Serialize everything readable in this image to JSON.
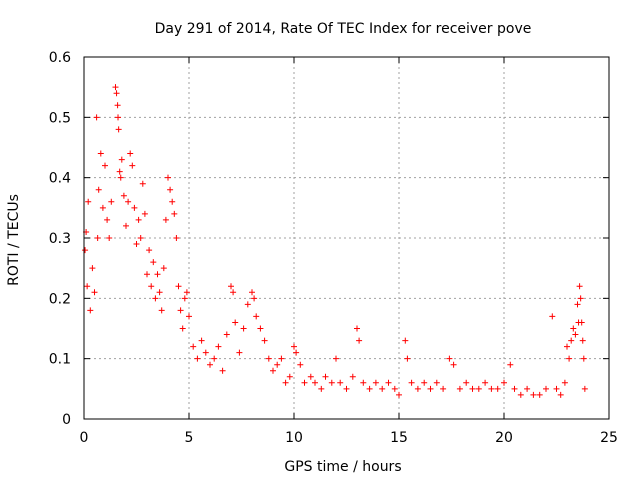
{
  "chart_data": {
    "type": "scatter",
    "title": "Day 291 of 2014, Rate Of TEC Index for receiver pove",
    "xlabel": "GPS time / hours",
    "ylabel": "ROTI / TECUs",
    "xlim": [
      0,
      25
    ],
    "ylim": [
      0,
      0.6
    ],
    "xticks": [
      0,
      5,
      10,
      15,
      20,
      25
    ],
    "xtick_labels": [
      "0",
      "5",
      "10",
      "15",
      "20",
      "25"
    ],
    "yticks": [
      0,
      0.1,
      0.2,
      0.3,
      0.4,
      0.5,
      0.6
    ],
    "ytick_labels": [
      "0",
      "0.1",
      "0.2",
      "0.3",
      "0.4",
      "0.5",
      "0.6"
    ],
    "grid": true,
    "marker": "+",
    "color": "#ff0000",
    "grid_color": "#a0a0a0",
    "series": [
      {
        "name": "ROTI",
        "points": [
          [
            0.05,
            0.28
          ],
          [
            0.1,
            0.31
          ],
          [
            0.15,
            0.22
          ],
          [
            0.2,
            0.36
          ],
          [
            0.3,
            0.18
          ],
          [
            0.4,
            0.25
          ],
          [
            0.5,
            0.21
          ],
          [
            0.6,
            0.5
          ],
          [
            0.65,
            0.3
          ],
          [
            0.7,
            0.38
          ],
          [
            0.8,
            0.44
          ],
          [
            0.9,
            0.35
          ],
          [
            1.0,
            0.42
          ],
          [
            1.1,
            0.33
          ],
          [
            1.2,
            0.3
          ],
          [
            1.3,
            0.36
          ],
          [
            1.5,
            0.55
          ],
          [
            1.55,
            0.54
          ],
          [
            1.6,
            0.52
          ],
          [
            1.62,
            0.5
          ],
          [
            1.65,
            0.48
          ],
          [
            1.7,
            0.41
          ],
          [
            1.75,
            0.4
          ],
          [
            1.8,
            0.43
          ],
          [
            1.9,
            0.37
          ],
          [
            2.0,
            0.32
          ],
          [
            2.1,
            0.36
          ],
          [
            2.2,
            0.44
          ],
          [
            2.3,
            0.42
          ],
          [
            2.4,
            0.35
          ],
          [
            2.5,
            0.29
          ],
          [
            2.6,
            0.33
          ],
          [
            2.7,
            0.3
          ],
          [
            2.8,
            0.39
          ],
          [
            2.9,
            0.34
          ],
          [
            3.0,
            0.24
          ],
          [
            3.1,
            0.28
          ],
          [
            3.2,
            0.22
          ],
          [
            3.3,
            0.26
          ],
          [
            3.4,
            0.2
          ],
          [
            3.5,
            0.24
          ],
          [
            3.6,
            0.21
          ],
          [
            3.7,
            0.18
          ],
          [
            3.8,
            0.25
          ],
          [
            3.9,
            0.33
          ],
          [
            4.0,
            0.4
          ],
          [
            4.1,
            0.38
          ],
          [
            4.2,
            0.36
          ],
          [
            4.3,
            0.34
          ],
          [
            4.4,
            0.3
          ],
          [
            4.5,
            0.22
          ],
          [
            4.6,
            0.18
          ],
          [
            4.7,
            0.15
          ],
          [
            4.8,
            0.2
          ],
          [
            4.9,
            0.21
          ],
          [
            5.0,
            0.17
          ],
          [
            5.2,
            0.12
          ],
          [
            5.4,
            0.1
          ],
          [
            5.6,
            0.13
          ],
          [
            5.8,
            0.11
          ],
          [
            6.0,
            0.09
          ],
          [
            6.2,
            0.1
          ],
          [
            6.4,
            0.12
          ],
          [
            6.6,
            0.08
          ],
          [
            6.8,
            0.14
          ],
          [
            7.0,
            0.22
          ],
          [
            7.1,
            0.21
          ],
          [
            7.2,
            0.16
          ],
          [
            7.4,
            0.11
          ],
          [
            7.6,
            0.15
          ],
          [
            7.8,
            0.19
          ],
          [
            8.0,
            0.21
          ],
          [
            8.1,
            0.2
          ],
          [
            8.2,
            0.17
          ],
          [
            8.4,
            0.15
          ],
          [
            8.6,
            0.13
          ],
          [
            8.8,
            0.1
          ],
          [
            9.0,
            0.08
          ],
          [
            9.2,
            0.09
          ],
          [
            9.4,
            0.1
          ],
          [
            9.6,
            0.06
          ],
          [
            9.8,
            0.07
          ],
          [
            10.0,
            0.12
          ],
          [
            10.1,
            0.11
          ],
          [
            10.3,
            0.09
          ],
          [
            10.5,
            0.06
          ],
          [
            10.8,
            0.07
          ],
          [
            11.0,
            0.06
          ],
          [
            11.3,
            0.05
          ],
          [
            11.5,
            0.07
          ],
          [
            11.8,
            0.06
          ],
          [
            12.0,
            0.1
          ],
          [
            12.2,
            0.06
          ],
          [
            12.5,
            0.05
          ],
          [
            12.8,
            0.07
          ],
          [
            13.0,
            0.15
          ],
          [
            13.1,
            0.13
          ],
          [
            13.3,
            0.06
          ],
          [
            13.6,
            0.05
          ],
          [
            13.9,
            0.06
          ],
          [
            14.2,
            0.05
          ],
          [
            14.5,
            0.06
          ],
          [
            14.8,
            0.05
          ],
          [
            15.0,
            0.04
          ],
          [
            15.3,
            0.13
          ],
          [
            15.4,
            0.1
          ],
          [
            15.6,
            0.06
          ],
          [
            15.9,
            0.05
          ],
          [
            16.2,
            0.06
          ],
          [
            16.5,
            0.05
          ],
          [
            16.8,
            0.06
          ],
          [
            17.1,
            0.05
          ],
          [
            17.4,
            0.1
          ],
          [
            17.6,
            0.09
          ],
          [
            17.9,
            0.05
          ],
          [
            18.2,
            0.06
          ],
          [
            18.5,
            0.05
          ],
          [
            18.8,
            0.05
          ],
          [
            19.1,
            0.06
          ],
          [
            19.4,
            0.05
          ],
          [
            19.7,
            0.05
          ],
          [
            20.0,
            0.06
          ],
          [
            20.3,
            0.09
          ],
          [
            20.5,
            0.05
          ],
          [
            20.8,
            0.04
          ],
          [
            21.1,
            0.05
          ],
          [
            21.4,
            0.04
          ],
          [
            21.7,
            0.04
          ],
          [
            22.0,
            0.05
          ],
          [
            22.3,
            0.17
          ],
          [
            22.5,
            0.05
          ],
          [
            22.7,
            0.04
          ],
          [
            22.9,
            0.06
          ],
          [
            23.0,
            0.12
          ],
          [
            23.1,
            0.1
          ],
          [
            23.2,
            0.13
          ],
          [
            23.3,
            0.15
          ],
          [
            23.4,
            0.14
          ],
          [
            23.5,
            0.19
          ],
          [
            23.55,
            0.16
          ],
          [
            23.6,
            0.22
          ],
          [
            23.65,
            0.2
          ],
          [
            23.7,
            0.16
          ],
          [
            23.75,
            0.13
          ],
          [
            23.8,
            0.1
          ],
          [
            23.85,
            0.05
          ]
        ]
      }
    ]
  }
}
